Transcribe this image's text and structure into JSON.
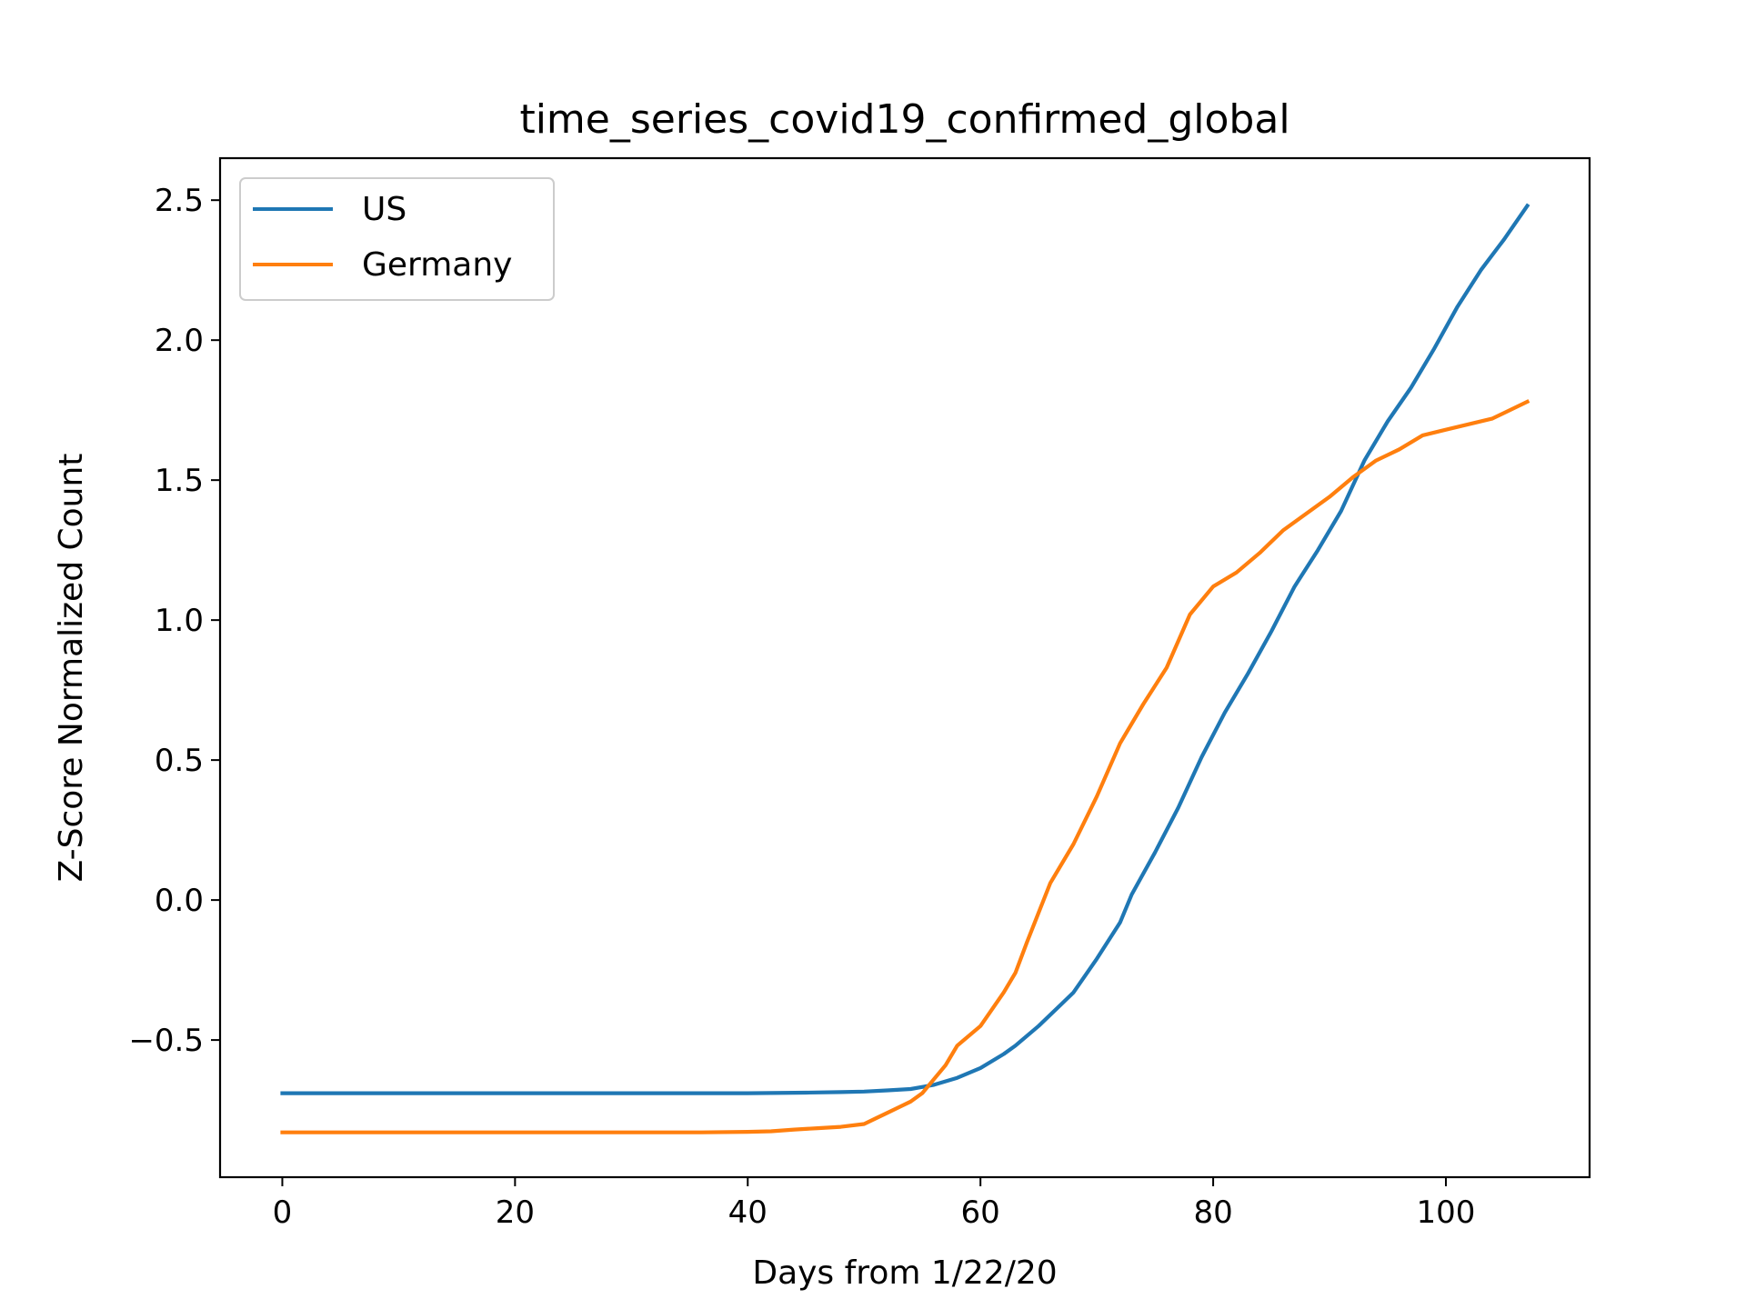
{
  "chart_data": {
    "type": "line",
    "title": "time_series_covid19_confirmed_global",
    "xlabel": "Days from 1/22/20",
    "ylabel": "Z-Score Normalized Count",
    "xlim": [
      -5.35,
      112.35
    ],
    "ylim": [
      -0.99,
      2.65
    ],
    "xticks": [
      0,
      20,
      40,
      60,
      80,
      100
    ],
    "xtick_labels": [
      "0",
      "20",
      "40",
      "60",
      "80",
      "100"
    ],
    "yticks": [
      -0.5,
      0.0,
      0.5,
      1.0,
      1.5,
      2.0,
      2.5
    ],
    "ytick_labels": [
      "−0.5",
      "0.0",
      "0.5",
      "1.0",
      "1.5",
      "2.0",
      "2.5"
    ],
    "grid": false,
    "legend_position": "upper-left",
    "series": [
      {
        "name": "US",
        "color": "#1f77b4",
        "x": [
          0,
          10,
          20,
          30,
          40,
          45,
          48,
          50,
          52,
          54,
          56,
          58,
          60,
          62,
          63,
          65,
          67,
          68,
          70,
          72,
          73,
          75,
          77,
          79,
          81,
          83,
          85,
          87,
          89,
          91,
          93,
          95,
          97,
          99,
          101,
          103,
          105,
          107
        ],
        "y": [
          -0.69,
          -0.69,
          -0.69,
          -0.69,
          -0.69,
          -0.688,
          -0.686,
          -0.684,
          -0.68,
          -0.675,
          -0.66,
          -0.635,
          -0.6,
          -0.55,
          -0.52,
          -0.45,
          -0.37,
          -0.33,
          -0.21,
          -0.08,
          0.02,
          0.17,
          0.33,
          0.51,
          0.67,
          0.81,
          0.96,
          1.12,
          1.25,
          1.39,
          1.57,
          1.71,
          1.83,
          1.97,
          2.12,
          2.25,
          2.36,
          2.48
        ]
      },
      {
        "name": "Germany",
        "color": "#ff7f0e",
        "x": [
          0,
          10,
          20,
          30,
          36,
          40,
          42,
          44,
          46,
          48,
          50,
          51,
          52,
          53,
          54,
          55,
          56,
          57,
          58,
          60,
          62,
          63,
          64,
          66,
          68,
          70,
          72,
          74,
          76,
          78,
          80,
          82,
          84,
          86,
          88,
          90,
          92,
          94,
          96,
          98,
          100,
          102,
          104,
          107
        ],
        "y": [
          -0.83,
          -0.83,
          -0.83,
          -0.83,
          -0.83,
          -0.828,
          -0.826,
          -0.82,
          -0.815,
          -0.81,
          -0.8,
          -0.78,
          -0.76,
          -0.74,
          -0.72,
          -0.69,
          -0.64,
          -0.59,
          -0.52,
          -0.45,
          -0.33,
          -0.26,
          -0.15,
          0.06,
          0.2,
          0.37,
          0.56,
          0.7,
          0.83,
          1.02,
          1.12,
          1.17,
          1.24,
          1.32,
          1.38,
          1.44,
          1.51,
          1.57,
          1.61,
          1.66,
          1.68,
          1.7,
          1.72,
          1.78
        ]
      }
    ]
  }
}
